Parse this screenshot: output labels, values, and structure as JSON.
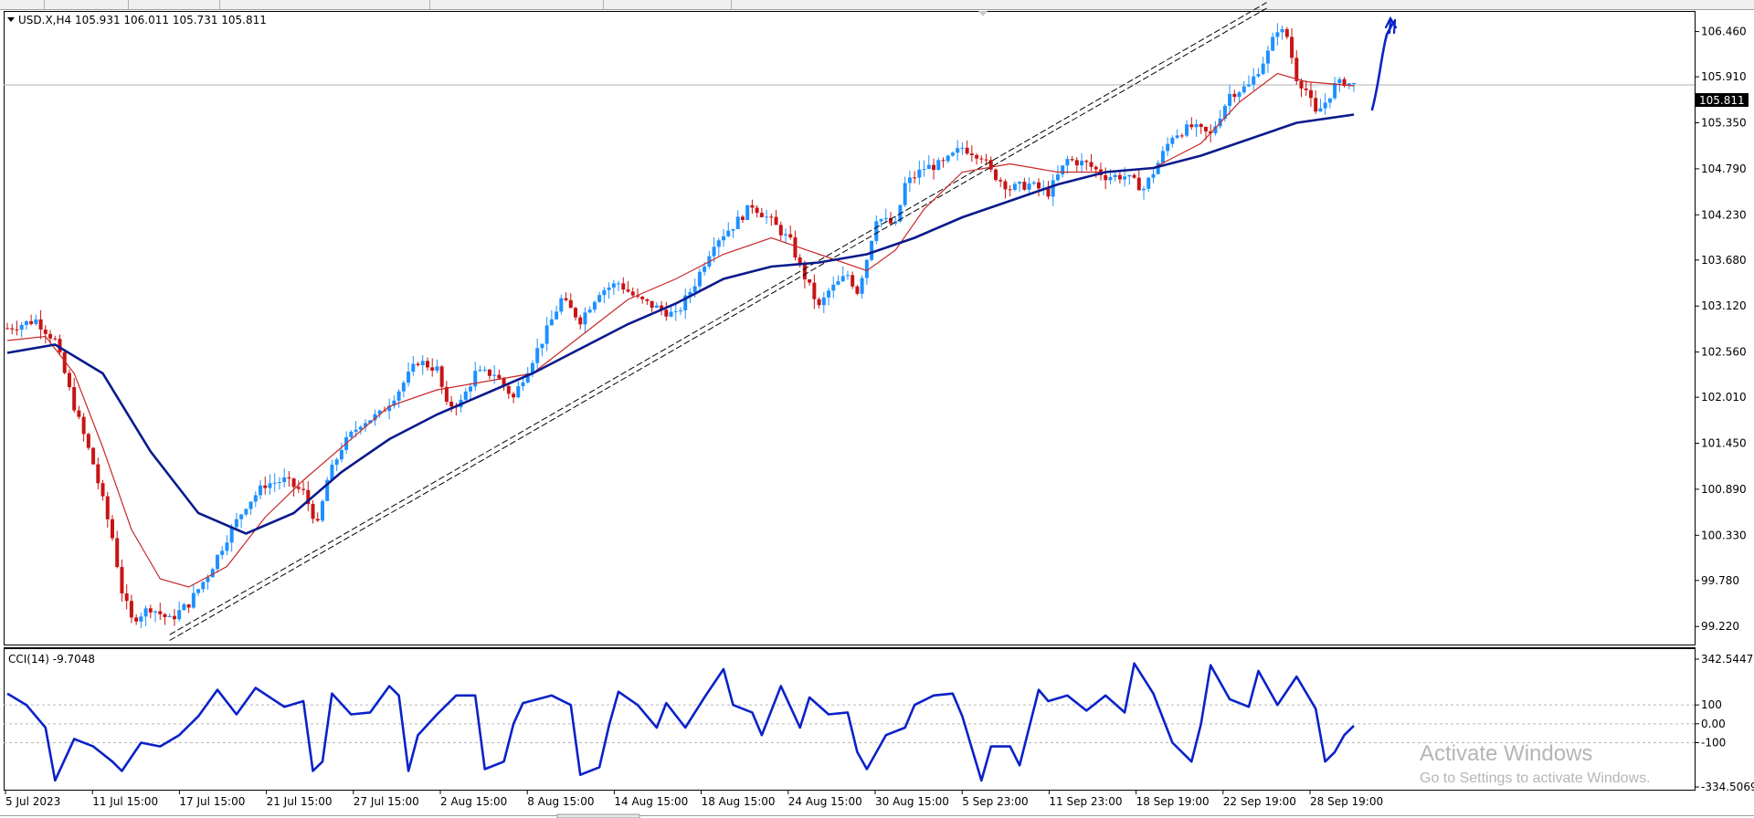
{
  "window": {
    "symbol_info": "USD.X,H4  105.931 106.011 105.731 105.811",
    "current_price_tag": "105.811",
    "price_axis_labels": [
      "106.460",
      "105.910",
      "105.350",
      "104.790",
      "104.230",
      "103.680",
      "103.120",
      "102.560",
      "102.010",
      "101.450",
      "100.890",
      "100.330",
      "99.780",
      "99.220"
    ],
    "indicator_label": "CCI(14) -9.7048",
    "indicator_axis_labels": [
      "342.5447",
      "100",
      "0.00",
      "-100",
      "-334.5069"
    ],
    "time_axis_labels": [
      "5 Jul 2023",
      "11 Jul 15:00",
      "17 Jul 15:00",
      "21 Jul 15:00",
      "27 Jul 15:00",
      "2 Aug 15:00",
      "8 Aug 15:00",
      "14 Aug 15:00",
      "18 Aug 15:00",
      "24 Aug 15:00",
      "30 Aug 15:00",
      "5 Sep 23:00",
      "11 Sep 23:00",
      "18 Sep 19:00",
      "22 Sep 19:00",
      "28 Sep 19:00"
    ]
  },
  "watermark": {
    "title": "Activate Windows",
    "subtitle": "Go to Settings to activate Windows."
  },
  "colors": {
    "bull": "#1e90ff",
    "bear": "#c81414",
    "ma_slow": "#0a1a8c",
    "ma_fast": "#c82828",
    "cci": "#0a22c8",
    "trendline": "#000000",
    "annotation": "#0a22c8"
  },
  "chart_data": {
    "type": "candlestick",
    "symbol": "USD.X",
    "timeframe": "H4",
    "ylim": [
      99.0,
      106.7
    ],
    "last": 105.811,
    "price_path": [
      [
        0,
        102.85
      ],
      [
        6,
        102.95
      ],
      [
        10,
        102.7
      ],
      [
        14,
        101.9
      ],
      [
        18,
        101.2
      ],
      [
        22,
        100.3
      ],
      [
        24,
        99.65
      ],
      [
        26,
        99.3
      ],
      [
        30,
        99.45
      ],
      [
        34,
        99.3
      ],
      [
        38,
        99.5
      ],
      [
        42,
        99.85
      ],
      [
        46,
        100.3
      ],
      [
        50,
        100.7
      ],
      [
        54,
        100.95
      ],
      [
        58,
        101.0
      ],
      [
        62,
        100.85
      ],
      [
        65,
        100.45
      ],
      [
        67,
        101.0
      ],
      [
        70,
        101.4
      ],
      [
        74,
        101.7
      ],
      [
        78,
        101.8
      ],
      [
        82,
        102.1
      ],
      [
        86,
        102.45
      ],
      [
        90,
        102.35
      ],
      [
        92,
        101.9
      ],
      [
        95,
        101.95
      ],
      [
        98,
        102.3
      ],
      [
        102,
        102.3
      ],
      [
        106,
        102.0
      ],
      [
        108,
        102.25
      ],
      [
        112,
        102.7
      ],
      [
        116,
        103.2
      ],
      [
        120,
        102.95
      ],
      [
        124,
        103.3
      ],
      [
        128,
        103.4
      ],
      [
        132,
        103.2
      ],
      [
        136,
        103.1
      ],
      [
        140,
        103.0
      ],
      [
        144,
        103.4
      ],
      [
        148,
        103.9
      ],
      [
        152,
        104.1
      ],
      [
        156,
        104.35
      ],
      [
        160,
        104.15
      ],
      [
        164,
        103.9
      ],
      [
        166,
        103.6
      ],
      [
        170,
        103.1
      ],
      [
        172,
        103.3
      ],
      [
        176,
        103.5
      ],
      [
        178,
        103.3
      ],
      [
        180,
        103.7
      ],
      [
        182,
        104.2
      ],
      [
        186,
        104.1
      ],
      [
        188,
        104.6
      ],
      [
        192,
        104.8
      ],
      [
        196,
        104.85
      ],
      [
        200,
        105.05
      ],
      [
        204,
        104.95
      ],
      [
        206,
        104.75
      ],
      [
        210,
        104.55
      ],
      [
        214,
        104.6
      ],
      [
        218,
        104.5
      ],
      [
        222,
        104.9
      ],
      [
        226,
        104.85
      ],
      [
        230,
        104.7
      ],
      [
        234,
        104.7
      ],
      [
        238,
        104.55
      ],
      [
        240,
        104.75
      ],
      [
        244,
        105.2
      ],
      [
        248,
        105.3
      ],
      [
        252,
        105.2
      ],
      [
        256,
        105.7
      ],
      [
        260,
        105.8
      ],
      [
        264,
        106.2
      ],
      [
        266,
        106.5
      ],
      [
        268,
        106.4
      ],
      [
        270,
        105.9
      ],
      [
        272,
        105.75
      ],
      [
        274,
        105.45
      ],
      [
        276,
        105.6
      ],
      [
        278,
        105.8
      ],
      [
        280,
        105.85
      ],
      [
        282,
        105.81
      ]
    ],
    "ma_slow_path": [
      [
        0,
        102.55
      ],
      [
        10,
        102.65
      ],
      [
        20,
        102.3
      ],
      [
        30,
        101.35
      ],
      [
        40,
        100.6
      ],
      [
        50,
        100.35
      ],
      [
        60,
        100.6
      ],
      [
        70,
        101.1
      ],
      [
        80,
        101.5
      ],
      [
        90,
        101.8
      ],
      [
        100,
        102.05
      ],
      [
        110,
        102.3
      ],
      [
        120,
        102.6
      ],
      [
        130,
        102.9
      ],
      [
        140,
        103.15
      ],
      [
        150,
        103.45
      ],
      [
        160,
        103.6
      ],
      [
        170,
        103.65
      ],
      [
        180,
        103.75
      ],
      [
        190,
        103.95
      ],
      [
        200,
        104.2
      ],
      [
        210,
        104.4
      ],
      [
        220,
        104.6
      ],
      [
        230,
        104.75
      ],
      [
        240,
        104.8
      ],
      [
        250,
        104.95
      ],
      [
        260,
        105.15
      ],
      [
        270,
        105.35
      ],
      [
        282,
        105.45
      ]
    ],
    "ma_fast_path": [
      [
        0,
        102.7
      ],
      [
        8,
        102.75
      ],
      [
        14,
        102.3
      ],
      [
        20,
        101.4
      ],
      [
        26,
        100.4
      ],
      [
        32,
        99.8
      ],
      [
        38,
        99.7
      ],
      [
        46,
        99.95
      ],
      [
        54,
        100.55
      ],
      [
        62,
        101.0
      ],
      [
        70,
        101.4
      ],
      [
        80,
        101.9
      ],
      [
        90,
        102.1
      ],
      [
        100,
        102.2
      ],
      [
        110,
        102.3
      ],
      [
        120,
        102.75
      ],
      [
        130,
        103.2
      ],
      [
        140,
        103.45
      ],
      [
        150,
        103.75
      ],
      [
        160,
        103.95
      ],
      [
        170,
        103.75
      ],
      [
        180,
        103.55
      ],
      [
        186,
        103.8
      ],
      [
        192,
        104.3
      ],
      [
        200,
        104.75
      ],
      [
        210,
        104.85
      ],
      [
        220,
        104.75
      ],
      [
        230,
        104.75
      ],
      [
        240,
        104.8
      ],
      [
        250,
        105.1
      ],
      [
        258,
        105.6
      ],
      [
        266,
        105.95
      ],
      [
        272,
        105.85
      ],
      [
        282,
        105.8
      ]
    ],
    "trendline_points": [
      [
        34,
        99.05
      ],
      [
        258,
        106.7
      ]
    ],
    "trendline_offset": 0.07,
    "cci_path": [
      [
        0,
        160
      ],
      [
        4,
        100
      ],
      [
        8,
        -20
      ],
      [
        10,
        -300
      ],
      [
        14,
        -80
      ],
      [
        18,
        -120
      ],
      [
        22,
        -200
      ],
      [
        24,
        -250
      ],
      [
        28,
        -100
      ],
      [
        32,
        -120
      ],
      [
        36,
        -60
      ],
      [
        40,
        40
      ],
      [
        44,
        180
      ],
      [
        48,
        50
      ],
      [
        52,
        190
      ],
      [
        58,
        90
      ],
      [
        62,
        120
      ],
      [
        64,
        -250
      ],
      [
        66,
        -200
      ],
      [
        68,
        160
      ],
      [
        72,
        50
      ],
      [
        76,
        60
      ],
      [
        80,
        200
      ],
      [
        82,
        150
      ],
      [
        84,
        -250
      ],
      [
        86,
        -60
      ],
      [
        90,
        50
      ],
      [
        94,
        150
      ],
      [
        98,
        150
      ],
      [
        100,
        -240
      ],
      [
        104,
        -200
      ],
      [
        106,
        0
      ],
      [
        108,
        110
      ],
      [
        114,
        150
      ],
      [
        118,
        100
      ],
      [
        120,
        -270
      ],
      [
        124,
        -230
      ],
      [
        126,
        -10
      ],
      [
        128,
        170
      ],
      [
        132,
        100
      ],
      [
        136,
        -20
      ],
      [
        138,
        110
      ],
      [
        142,
        -20
      ],
      [
        146,
        140
      ],
      [
        150,
        290
      ],
      [
        152,
        100
      ],
      [
        156,
        60
      ],
      [
        158,
        -60
      ],
      [
        162,
        200
      ],
      [
        166,
        -20
      ],
      [
        168,
        140
      ],
      [
        172,
        50
      ],
      [
        176,
        60
      ],
      [
        178,
        -150
      ],
      [
        180,
        -240
      ],
      [
        184,
        -60
      ],
      [
        188,
        -20
      ],
      [
        190,
        100
      ],
      [
        194,
        150
      ],
      [
        198,
        160
      ],
      [
        200,
        40
      ],
      [
        204,
        -300
      ],
      [
        206,
        -120
      ],
      [
        210,
        -120
      ],
      [
        212,
        -220
      ],
      [
        216,
        180
      ],
      [
        218,
        120
      ],
      [
        222,
        150
      ],
      [
        226,
        70
      ],
      [
        230,
        150
      ],
      [
        234,
        60
      ],
      [
        236,
        320
      ],
      [
        240,
        160
      ],
      [
        244,
        -100
      ],
      [
        248,
        -200
      ],
      [
        250,
        0
      ],
      [
        252,
        310
      ],
      [
        256,
        130
      ],
      [
        260,
        90
      ],
      [
        262,
        280
      ],
      [
        266,
        100
      ],
      [
        270,
        250
      ],
      [
        274,
        80
      ],
      [
        276,
        -200
      ],
      [
        278,
        -150
      ],
      [
        280,
        -60
      ],
      [
        282,
        -10
      ]
    ],
    "cci_ylim": [
      -334.5069,
      342.5447
    ],
    "cci_levels": [
      100,
      0,
      -100
    ]
  }
}
